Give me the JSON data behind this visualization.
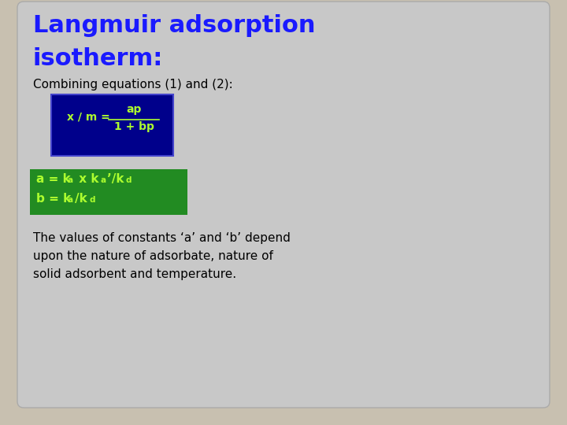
{
  "title_line1": "Langmuir adsorption",
  "title_line2": "isotherm:",
  "title_color": "#1a1aff",
  "subtitle": "Combining equations (1) and (2):",
  "subtitle_color": "#000000",
  "bg_outer": "#c8c0b0",
  "bg_slide": "#c8c8c8",
  "blue_box_color": "#00008b",
  "blue_box_text_color": "#adff2f",
  "green_box_color": "#228b22",
  "green_box_text_color": "#adff2f",
  "body_text_line1": "The values of constants ‘a’ and ‘b’ depend",
  "body_text_line2": "upon the nature of adsorbate, nature of",
  "body_text_line3": "solid adsorbent and temperature.",
  "body_text_color": "#000000"
}
